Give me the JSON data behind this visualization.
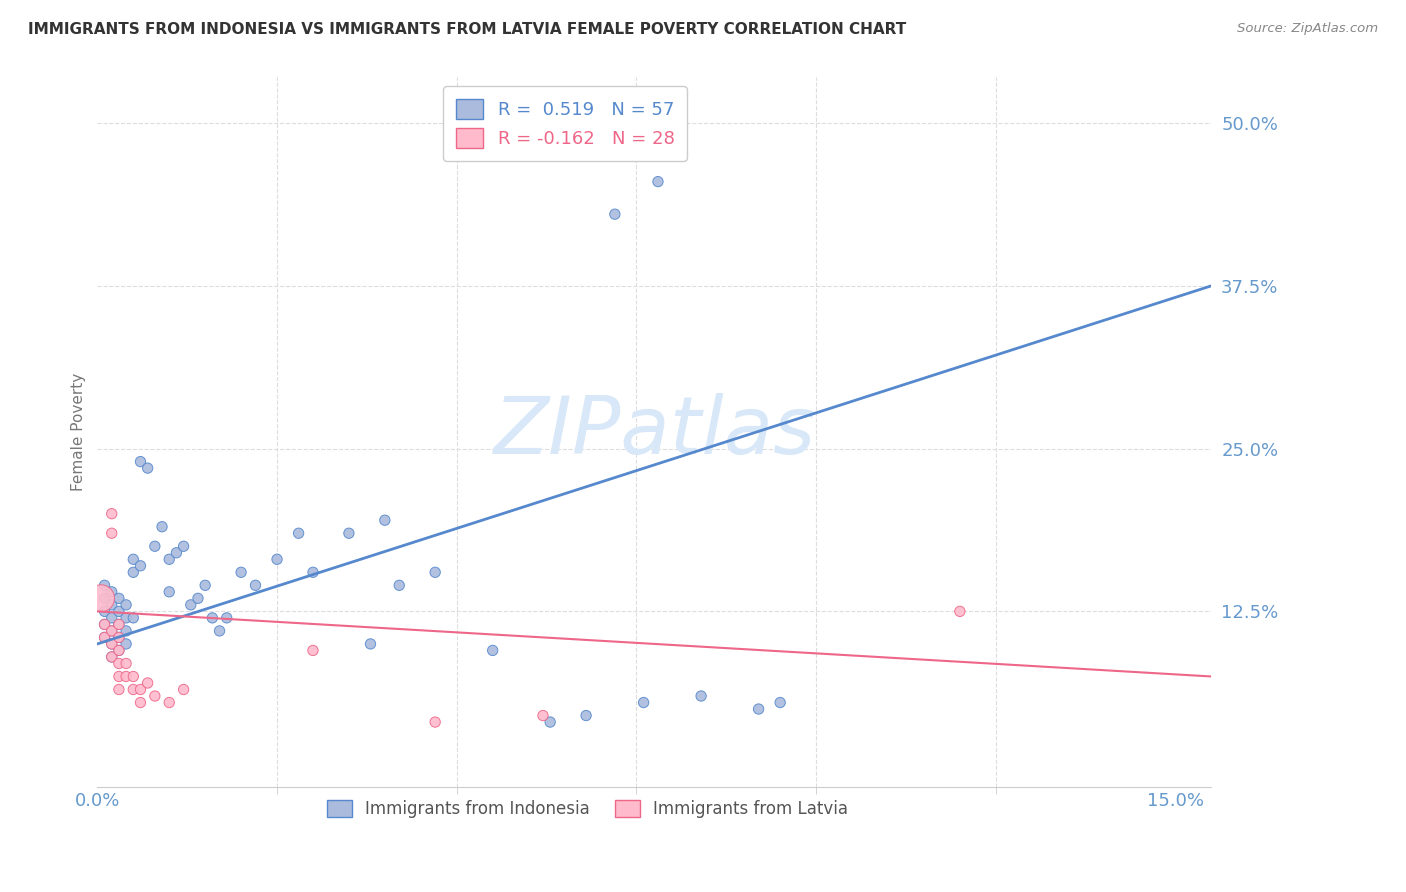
{
  "title": "IMMIGRANTS FROM INDONESIA VS IMMIGRANTS FROM LATVIA FEMALE POVERTY CORRELATION CHART",
  "source": "Source: ZipAtlas.com",
  "ylabel": "Female Poverty",
  "xlim": [
    0.0,
    0.155
  ],
  "ylim": [
    -0.01,
    0.535
  ],
  "blue_color": "#AABBDD",
  "pink_color": "#FFBBCC",
  "blue_line_color": "#5588CC",
  "pink_line_color": "#EE6688",
  "blue_edge_color": "#5588CC",
  "pink_edge_color": "#EE6688",
  "watermark_color": "#D8E8F8",
  "axis_label_color": "#6699CC",
  "ylabel_color": "#777777",
  "title_color": "#333333",
  "source_color": "#888888",
  "grid_color": "#DDDDDD",
  "spine_color": "#CCCCCC",
  "blue_line_y0": 0.1,
  "blue_line_y1": 0.375,
  "pink_line_y0": 0.125,
  "pink_line_y1": 0.075,
  "indonesia_pts": [
    [
      0.001,
      0.145
    ],
    [
      0.001,
      0.135
    ],
    [
      0.001,
      0.125
    ],
    [
      0.001,
      0.115
    ],
    [
      0.001,
      0.105
    ],
    [
      0.002,
      0.14
    ],
    [
      0.002,
      0.13
    ],
    [
      0.002,
      0.12
    ],
    [
      0.002,
      0.11
    ],
    [
      0.002,
      0.1
    ],
    [
      0.002,
      0.09
    ],
    [
      0.003,
      0.135
    ],
    [
      0.003,
      0.125
    ],
    [
      0.003,
      0.115
    ],
    [
      0.003,
      0.105
    ],
    [
      0.003,
      0.095
    ],
    [
      0.004,
      0.13
    ],
    [
      0.004,
      0.12
    ],
    [
      0.004,
      0.11
    ],
    [
      0.004,
      0.1
    ],
    [
      0.005,
      0.165
    ],
    [
      0.005,
      0.155
    ],
    [
      0.005,
      0.12
    ],
    [
      0.006,
      0.24
    ],
    [
      0.006,
      0.16
    ],
    [
      0.007,
      0.235
    ],
    [
      0.008,
      0.175
    ],
    [
      0.009,
      0.19
    ],
    [
      0.01,
      0.165
    ],
    [
      0.01,
      0.14
    ],
    [
      0.011,
      0.17
    ],
    [
      0.012,
      0.175
    ],
    [
      0.013,
      0.13
    ],
    [
      0.014,
      0.135
    ],
    [
      0.015,
      0.145
    ],
    [
      0.016,
      0.12
    ],
    [
      0.017,
      0.11
    ],
    [
      0.018,
      0.12
    ],
    [
      0.02,
      0.155
    ],
    [
      0.022,
      0.145
    ],
    [
      0.025,
      0.165
    ],
    [
      0.028,
      0.185
    ],
    [
      0.03,
      0.155
    ],
    [
      0.035,
      0.185
    ],
    [
      0.038,
      0.1
    ],
    [
      0.04,
      0.195
    ],
    [
      0.042,
      0.145
    ],
    [
      0.047,
      0.155
    ],
    [
      0.055,
      0.095
    ],
    [
      0.063,
      0.04
    ],
    [
      0.068,
      0.045
    ],
    [
      0.072,
      0.43
    ],
    [
      0.078,
      0.455
    ],
    [
      0.076,
      0.055
    ],
    [
      0.084,
      0.06
    ],
    [
      0.092,
      0.05
    ],
    [
      0.095,
      0.055
    ]
  ],
  "indonesia_sizes": [
    55,
    55,
    55,
    55,
    55,
    55,
    55,
    55,
    55,
    55,
    55,
    55,
    55,
    55,
    55,
    55,
    55,
    55,
    55,
    55,
    55,
    55,
    55,
    55,
    55,
    55,
    55,
    55,
    55,
    55,
    55,
    55,
    55,
    55,
    55,
    55,
    55,
    55,
    55,
    55,
    55,
    55,
    55,
    55,
    55,
    55,
    55,
    55,
    55,
    55,
    55,
    55,
    55,
    55,
    55,
    55,
    55
  ],
  "latvia_pts": [
    [
      0.0005,
      0.135
    ],
    [
      0.001,
      0.115
    ],
    [
      0.001,
      0.105
    ],
    [
      0.002,
      0.2
    ],
    [
      0.002,
      0.185
    ],
    [
      0.002,
      0.11
    ],
    [
      0.002,
      0.1
    ],
    [
      0.002,
      0.09
    ],
    [
      0.003,
      0.115
    ],
    [
      0.003,
      0.105
    ],
    [
      0.003,
      0.095
    ],
    [
      0.003,
      0.085
    ],
    [
      0.003,
      0.075
    ],
    [
      0.003,
      0.065
    ],
    [
      0.004,
      0.085
    ],
    [
      0.004,
      0.075
    ],
    [
      0.005,
      0.075
    ],
    [
      0.005,
      0.065
    ],
    [
      0.006,
      0.065
    ],
    [
      0.006,
      0.055
    ],
    [
      0.007,
      0.07
    ],
    [
      0.008,
      0.06
    ],
    [
      0.01,
      0.055
    ],
    [
      0.012,
      0.065
    ],
    [
      0.03,
      0.095
    ],
    [
      0.047,
      0.04
    ],
    [
      0.062,
      0.045
    ],
    [
      0.12,
      0.125
    ]
  ],
  "latvia_sizes": [
    380,
    55,
    55,
    55,
    55,
    55,
    55,
    55,
    55,
    55,
    55,
    55,
    55,
    55,
    55,
    55,
    55,
    55,
    55,
    55,
    55,
    55,
    55,
    55,
    55,
    55,
    55,
    55
  ]
}
